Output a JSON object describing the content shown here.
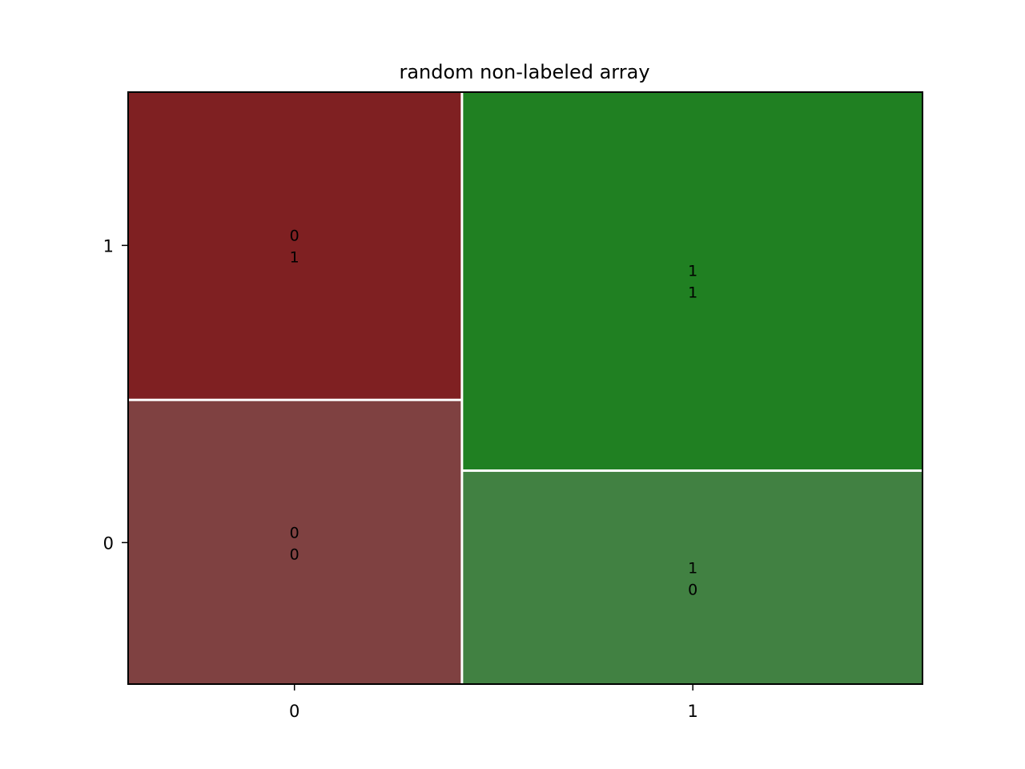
{
  "chart_data": {
    "type": "mosaic",
    "title": "random non-labeled array",
    "xlabel": "",
    "ylabel": "",
    "x_categories": [
      "0",
      "1"
    ],
    "y_categories": [
      "0",
      "1"
    ],
    "x_proportions": [
      0.42,
      0.58
    ],
    "tiles": [
      {
        "x": "0",
        "y": "0",
        "proportion_within_x": 0.48,
        "label": [
          "0",
          "0"
        ],
        "color": "#7f4141"
      },
      {
        "x": "0",
        "y": "1",
        "proportion_within_x": 0.52,
        "label": [
          "0",
          "1"
        ],
        "color": "#7f2022"
      },
      {
        "x": "1",
        "y": "0",
        "proportion_within_x": 0.36,
        "label": [
          "1",
          "0"
        ],
        "color": "#418142"
      },
      {
        "x": "1",
        "y": "1",
        "proportion_within_x": 0.64,
        "label": [
          "1",
          "1"
        ],
        "color": "#208022"
      }
    ],
    "grid": false,
    "legend": "none"
  }
}
